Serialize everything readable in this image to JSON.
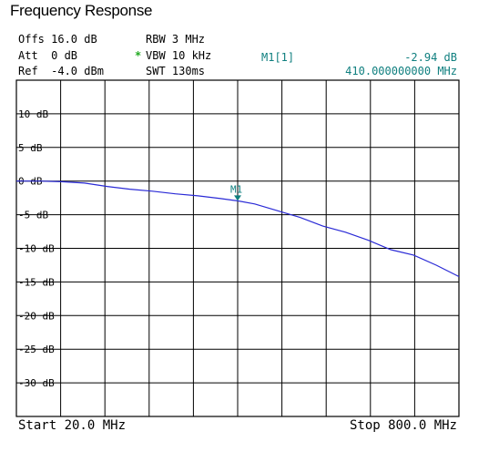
{
  "title": "Frequency Response",
  "settings": {
    "offs": "Offs 16.0 dB",
    "att": "Att  0 dB",
    "ref": "Ref  -4.0 dBm",
    "rbw": "RBW 3 MHz",
    "vbw_mark": "*",
    "vbw": "VBW 10 kHz",
    "swt": "SWT 130ms"
  },
  "marker_readout": {
    "name": "M1[1]",
    "level": "-2.94 dB",
    "frequency": "410.000000000 MHz"
  },
  "footer": {
    "start": "Start 20.0 MHz",
    "stop": "Stop 800.0 MHz"
  },
  "colors": {
    "trace": "#2a2ad6",
    "marker": "#0f7f7f",
    "grid": "#000000",
    "vbw_star": "#22aa22"
  },
  "chart_data": {
    "type": "line",
    "title": "Frequency Response",
    "xlabel": "",
    "ylabel": "",
    "xlim": [
      20,
      800
    ],
    "ylim": [
      -35,
      15
    ],
    "x_unit": "MHz",
    "y_unit": "dB",
    "grid": true,
    "yticks": [
      10,
      5,
      0,
      -5,
      -10,
      -15,
      -20,
      -25,
      -30
    ],
    "ytick_labels": [
      "10 dB",
      "5 dB",
      "0 dB",
      "-5 dB",
      "-10 dB",
      "-15 dB",
      "-20 dB",
      "-25 dB",
      "-30 dB"
    ],
    "series": [
      {
        "x": [
          20,
          60,
          100,
          140,
          180,
          220,
          260,
          300,
          340,
          380,
          410,
          440,
          480,
          520,
          560,
          600,
          640,
          680,
          720,
          760,
          800
        ],
        "y": [
          0,
          0,
          -0.1,
          -0.3,
          -0.8,
          -1.2,
          -1.5,
          -1.9,
          -2.2,
          -2.6,
          -2.94,
          -3.4,
          -4.4,
          -5.4,
          -6.7,
          -7.6,
          -8.8,
          -10.2,
          -11.0,
          -12.5,
          -14.2
        ]
      }
    ],
    "markers": [
      {
        "label": "M1",
        "x": 410,
        "y": -2.94
      }
    ]
  }
}
